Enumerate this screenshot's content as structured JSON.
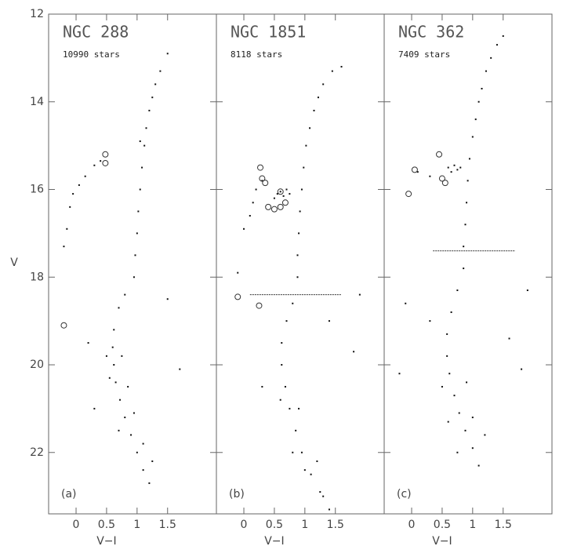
{
  "chart_data": [
    {
      "type": "scatter",
      "title": "NGC 288",
      "subtitle": "10990 stars",
      "panel_label": "(a)",
      "xlabel": "V−I",
      "ylabel": "V",
      "xlim": [
        -0.45,
        2.3
      ],
      "ylim": [
        12,
        23.4
      ],
      "y_inverted": true,
      "ytick_labels": true,
      "xticks": [
        0,
        0.5,
        1,
        1.5
      ],
      "yticks": [
        12,
        14,
        16,
        18,
        20,
        22
      ],
      "color": "#111111",
      "x": [
        0.95,
        0.97,
        1.0,
        1.02,
        1.05,
        1.08,
        1.12,
        1.15,
        1.2,
        1.25,
        1.3,
        1.38,
        1.5,
        1.05,
        0.8,
        0.7,
        0.62,
        0.6,
        0.62,
        0.65,
        0.72,
        0.8,
        0.9,
        1.0,
        1.1,
        1.2,
        0.55,
        0.85,
        0.95,
        1.1,
        1.25,
        0.75,
        0.5,
        0.7,
        -0.2,
        -0.15,
        -0.1,
        -0.05,
        0.05,
        0.15,
        0.3,
        0.4,
        1.5,
        0.2,
        1.7,
        0.3
      ],
      "y": [
        18.0,
        17.5,
        17.0,
        16.5,
        16.0,
        15.5,
        15.0,
        14.6,
        14.2,
        13.9,
        13.6,
        13.3,
        12.9,
        14.9,
        18.4,
        18.7,
        19.2,
        19.6,
        20.0,
        20.4,
        20.8,
        21.2,
        21.6,
        22.0,
        22.4,
        22.7,
        20.3,
        20.5,
        21.1,
        21.8,
        22.2,
        19.8,
        19.8,
        21.5,
        17.3,
        16.9,
        16.4,
        16.1,
        15.9,
        15.7,
        15.45,
        15.35,
        18.5,
        19.5,
        20.1,
        21.0
      ],
      "marked": {
        "x": [
          0.48,
          0.48,
          -0.2
        ],
        "y": [
          15.2,
          15.4,
          19.1
        ]
      }
    },
    {
      "type": "scatter",
      "title": "NGC 1851",
      "subtitle": "8118 stars",
      "panel_label": "(b)",
      "xlabel": "V−I",
      "xlim": [
        -0.45,
        2.3
      ],
      "ylim": [
        12,
        23.4
      ],
      "y_inverted": true,
      "ytick_labels": false,
      "xticks": [
        0,
        0.5,
        1,
        1.5
      ],
      "yticks": [
        12,
        14,
        16,
        18,
        20,
        22
      ],
      "color": "#111111",
      "x": [
        0.88,
        0.88,
        0.9,
        0.92,
        0.95,
        0.98,
        1.02,
        1.08,
        1.15,
        1.22,
        1.3,
        1.45,
        1.6,
        0.8,
        0.7,
        0.62,
        0.62,
        0.68,
        0.75,
        0.85,
        0.95,
        1.1,
        1.25,
        1.4,
        0.6,
        0.9,
        1.0,
        1.2,
        0.8,
        1.3,
        0.0,
        0.1,
        0.15,
        0.2,
        0.3,
        0.55,
        0.6,
        0.65,
        0.7,
        0.75,
        0.5,
        -0.1,
        1.4,
        1.8,
        0.3,
        1.9
      ],
      "y": [
        18.0,
        17.5,
        17.0,
        16.5,
        16.0,
        15.5,
        15.0,
        14.6,
        14.2,
        13.9,
        13.6,
        13.3,
        13.2,
        18.6,
        19.0,
        19.5,
        20.0,
        20.5,
        21.0,
        21.5,
        22.0,
        22.5,
        22.9,
        23.3,
        20.8,
        21.0,
        22.4,
        22.2,
        22.0,
        23.0,
        16.9,
        16.6,
        16.3,
        16.0,
        15.8,
        16.1,
        16.05,
        16.15,
        16.0,
        16.1,
        16.2,
        17.9,
        19.0,
        19.7,
        20.5,
        18.4
      ],
      "marked": {
        "x": [
          0.27,
          0.35,
          0.3,
          0.4,
          0.5,
          0.6,
          0.6,
          0.68,
          -0.1,
          0.25
        ],
        "y": [
          15.5,
          15.85,
          15.75,
          16.4,
          16.45,
          16.05,
          16.4,
          16.3,
          18.45,
          18.65
        ]
      },
      "reference_line": {
        "y": 18.4,
        "x": [
          0.1,
          1.6
        ]
      }
    },
    {
      "type": "scatter",
      "title": "NGC 362",
      "subtitle": "7409 stars",
      "panel_label": "(c)",
      "xlabel": "V−I",
      "xlim": [
        -0.45,
        2.3
      ],
      "ylim": [
        12,
        23.4
      ],
      "y_inverted": true,
      "ytick_labels": false,
      "xticks": [
        0,
        0.5,
        1,
        1.5
      ],
      "yticks": [
        12,
        14,
        16,
        18,
        20,
        22
      ],
      "color": "#111111",
      "x": [
        0.85,
        0.85,
        0.88,
        0.9,
        0.92,
        0.95,
        1.0,
        1.05,
        1.1,
        1.15,
        1.22,
        1.3,
        1.4,
        1.5,
        0.75,
        0.65,
        0.58,
        0.58,
        0.62,
        0.7,
        0.78,
        0.88,
        1.0,
        1.1,
        0.5,
        0.9,
        1.0,
        0.6,
        1.2,
        0.75,
        0.6,
        0.7,
        0.75,
        0.8,
        0.65,
        0.1,
        0.3,
        -0.1,
        1.8,
        -0.2,
        0.3,
        1.6,
        1.9
      ],
      "y": [
        17.8,
        17.3,
        16.8,
        16.3,
        15.8,
        15.3,
        14.8,
        14.4,
        14.0,
        13.7,
        13.3,
        13.0,
        12.7,
        12.5,
        18.3,
        18.8,
        19.3,
        19.8,
        20.2,
        20.7,
        21.1,
        21.5,
        21.9,
        22.3,
        20.5,
        20.4,
        21.2,
        21.3,
        21.6,
        22.0,
        15.5,
        15.45,
        15.55,
        15.5,
        15.6,
        15.6,
        15.7,
        18.6,
        20.1,
        20.2,
        19.0,
        19.4,
        18.3
      ],
      "marked": {
        "x": [
          0.45,
          0.05,
          0.5,
          0.55,
          -0.05
        ],
        "y": [
          15.2,
          15.55,
          15.75,
          15.85,
          16.1
        ]
      },
      "reference_line": {
        "y": 17.4,
        "x": [
          0.35,
          1.7
        ]
      }
    }
  ]
}
